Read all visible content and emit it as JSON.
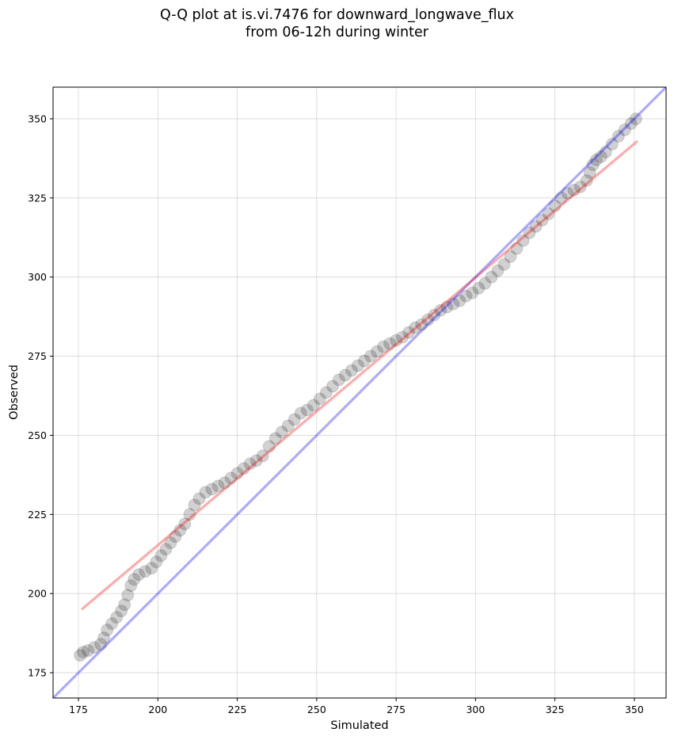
{
  "chart_data": {
    "type": "scatter",
    "title": [
      "Q-Q plot at is.vi.7476 for downward_longwave_flux",
      "from 06-12h during winter"
    ],
    "xlabel": "Simulated",
    "ylabel": "Observed",
    "xlim": [
      167,
      360
    ],
    "ylim": [
      167,
      360
    ],
    "x_ticks": [
      175,
      200,
      225,
      250,
      275,
      300,
      325,
      350
    ],
    "y_ticks": [
      175,
      200,
      225,
      250,
      275,
      300,
      325,
      350
    ],
    "grid": true,
    "legend": "none",
    "series": [
      {
        "kind": "line",
        "color": "#0000ff",
        "points": [
          [
            167,
            167
          ],
          [
            360,
            360
          ]
        ]
      },
      {
        "kind": "line",
        "color": "#ff0000",
        "points": [
          [
            176,
            195
          ],
          [
            351,
            343
          ]
        ]
      },
      {
        "kind": "points",
        "color": "#000000",
        "points": [
          [
            175.5,
            180.5
          ],
          [
            176.5,
            181.5
          ],
          [
            178,
            182
          ],
          [
            180,
            183
          ],
          [
            182,
            184
          ],
          [
            183,
            186
          ],
          [
            184,
            188.5
          ],
          [
            185.5,
            190.5
          ],
          [
            187,
            192.5
          ],
          [
            188.5,
            194.5
          ],
          [
            189.5,
            196.5
          ],
          [
            190.5,
            199.5
          ],
          [
            191.5,
            202.5
          ],
          [
            192.5,
            204.5
          ],
          [
            194,
            206
          ],
          [
            196,
            207
          ],
          [
            198,
            208
          ],
          [
            199.5,
            210
          ],
          [
            201,
            212
          ],
          [
            202.5,
            214
          ],
          [
            204,
            216
          ],
          [
            205.5,
            218
          ],
          [
            207,
            220
          ],
          [
            208.5,
            222
          ],
          [
            210,
            225
          ],
          [
            211.5,
            228
          ],
          [
            213,
            230
          ],
          [
            215,
            232
          ],
          [
            217,
            233
          ],
          [
            219,
            234
          ],
          [
            221,
            235
          ],
          [
            223,
            236.5
          ],
          [
            225,
            238
          ],
          [
            227,
            239.5
          ],
          [
            229,
            241
          ],
          [
            231,
            242
          ],
          [
            233,
            243.5
          ],
          [
            235,
            246.5
          ],
          [
            237,
            249
          ],
          [
            239,
            251
          ],
          [
            241,
            253
          ],
          [
            243,
            255
          ],
          [
            245,
            257
          ],
          [
            247,
            258
          ],
          [
            249,
            259.5
          ],
          [
            251,
            261.5
          ],
          [
            253,
            263.5
          ],
          [
            255,
            265.5
          ],
          [
            257,
            267.5
          ],
          [
            259,
            269
          ],
          [
            261,
            270.5
          ],
          [
            263,
            272
          ],
          [
            265,
            273.5
          ],
          [
            267,
            275
          ],
          [
            269,
            276.5
          ],
          [
            271,
            278
          ],
          [
            273,
            279
          ],
          [
            275,
            280
          ],
          [
            277,
            281
          ],
          [
            279,
            282.5
          ],
          [
            281,
            284
          ],
          [
            283,
            285
          ],
          [
            285,
            286.5
          ],
          [
            287,
            288
          ],
          [
            289,
            289.5
          ],
          [
            291,
            290.5
          ],
          [
            293,
            291.5
          ],
          [
            295,
            292.5
          ],
          [
            297,
            294
          ],
          [
            299,
            295
          ],
          [
            301,
            296.5
          ],
          [
            303,
            298
          ],
          [
            305,
            300
          ],
          [
            307,
            302
          ],
          [
            309,
            304
          ],
          [
            311,
            306.5
          ],
          [
            313,
            309
          ],
          [
            315,
            311.5
          ],
          [
            317,
            314
          ],
          [
            319,
            316
          ],
          [
            321,
            318
          ],
          [
            323,
            320
          ],
          [
            325,
            322.5
          ],
          [
            327,
            325
          ],
          [
            329,
            326.5
          ],
          [
            331,
            327.5
          ],
          [
            333,
            328.5
          ],
          [
            335,
            330.5
          ],
          [
            336,
            333
          ],
          [
            337,
            335.5
          ],
          [
            338,
            337
          ],
          [
            339.5,
            338
          ],
          [
            341,
            339.5
          ],
          [
            343,
            342
          ],
          [
            345,
            344.5
          ],
          [
            347,
            346.5
          ],
          [
            349,
            348.5
          ],
          [
            350.5,
            350
          ]
        ]
      }
    ]
  }
}
